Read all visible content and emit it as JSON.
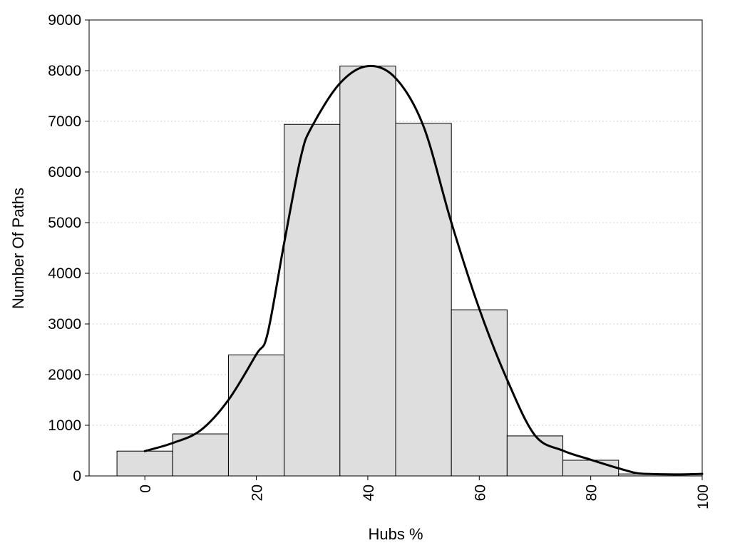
{
  "chart_data": {
    "type": "bar",
    "xlabel": "Hubs %",
    "ylabel": "Number Of Paths",
    "xlim": [
      -10,
      100
    ],
    "ylim": [
      0,
      9000
    ],
    "x_ticks": [
      0,
      20,
      40,
      60,
      80,
      100
    ],
    "y_ticks": [
      0,
      1000,
      2000,
      3000,
      4000,
      5000,
      6000,
      7000,
      8000,
      9000
    ],
    "grid": "horizontal dotted",
    "bin_width": 10,
    "bins": [
      {
        "x": 0,
        "value": 490
      },
      {
        "x": 10,
        "value": 830
      },
      {
        "x": 20,
        "value": 2390
      },
      {
        "x": 30,
        "value": 6940
      },
      {
        "x": 40,
        "value": 8090
      },
      {
        "x": 50,
        "value": 6960
      },
      {
        "x": 60,
        "value": 3280
      },
      {
        "x": 70,
        "value": 790
      },
      {
        "x": 80,
        "value": 310
      },
      {
        "x": 90,
        "value": 40
      },
      {
        "x": 100,
        "value": 40
      }
    ],
    "density_curve": {
      "x": [
        0,
        5,
        10,
        15,
        20,
        22,
        25,
        28,
        30,
        35,
        40,
        45,
        50,
        55,
        60,
        65,
        70,
        75,
        80,
        85,
        88,
        90,
        95,
        100
      ],
      "y": [
        490,
        650,
        900,
        1500,
        2400,
        2800,
        4600,
        6300,
        6900,
        7750,
        8090,
        7850,
        6900,
        5000,
        3300,
        1900,
        800,
        500,
        320,
        150,
        60,
        40,
        30,
        40
      ]
    },
    "colors": {
      "bar_fill": "#dedede",
      "bar_stroke": "#000000",
      "curve": "#000000"
    }
  }
}
